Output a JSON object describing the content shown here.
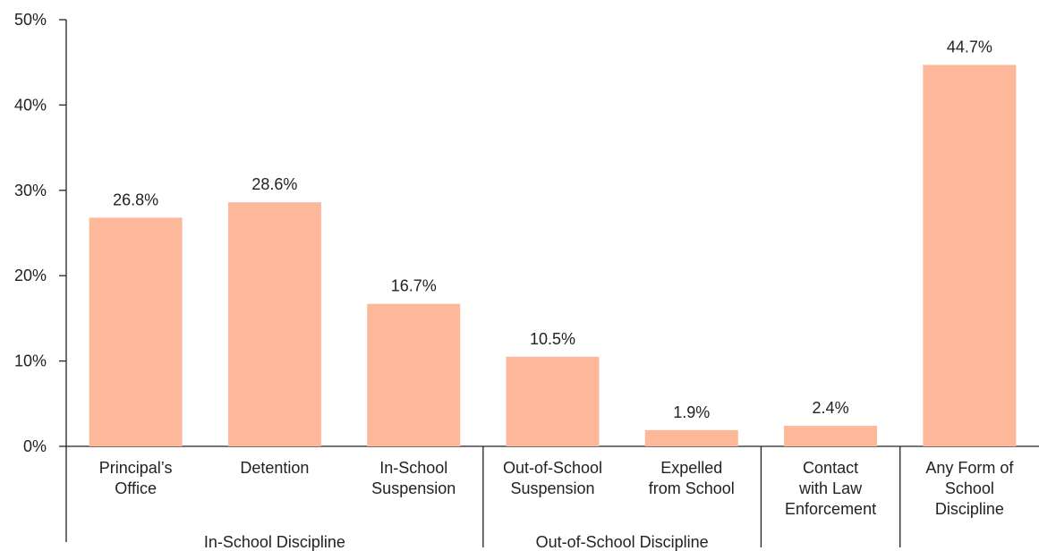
{
  "chart_data": {
    "type": "bar",
    "title": "",
    "xlabel": "",
    "ylabel": "",
    "ylim": [
      0,
      50
    ],
    "yticks": [
      0,
      10,
      20,
      30,
      40,
      50
    ],
    "ytick_labels": [
      "0%",
      "10%",
      "20%",
      "30%",
      "40%",
      "50%"
    ],
    "grid": false,
    "legend": "none",
    "bar_color": "#fdb89a",
    "categories": [
      [
        "Principal’s",
        "Office"
      ],
      [
        "Detention"
      ],
      [
        "In-School",
        "Suspension"
      ],
      [
        "Out-of-School",
        "Suspension"
      ],
      [
        "Expelled",
        "from School"
      ],
      [
        "Contact",
        "with Law",
        "Enforcement"
      ],
      [
        "Any Form of",
        "School",
        "Discipline"
      ]
    ],
    "values": [
      26.8,
      28.6,
      16.7,
      10.5,
      1.9,
      2.4,
      44.7
    ],
    "value_labels": [
      "26.8%",
      "28.6%",
      "16.7%",
      "10.5%",
      "1.9%",
      "2.4%",
      "44.7%"
    ],
    "groups": [
      {
        "label": "In-School Discipline",
        "categories": [
          0,
          1,
          2
        ]
      },
      {
        "label": "Out-of-School Discipline",
        "categories": [
          3,
          4
        ]
      },
      {
        "label": "",
        "categories": [
          5
        ]
      },
      {
        "label": "",
        "categories": [
          6
        ]
      }
    ]
  }
}
